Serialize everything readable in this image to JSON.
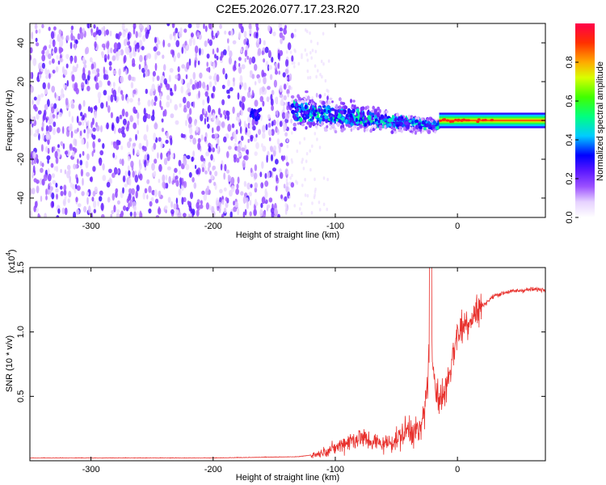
{
  "chart_data": [
    {
      "type": "heatmap",
      "title": "C2E5.2026.077.17.23.R20",
      "xlabel": "Height of straight line (km)",
      "ylabel": "Frequency (Hz)",
      "xlim": [
        -350,
        72
      ],
      "ylim": [
        -50,
        50
      ],
      "xticks": [
        -300,
        -200,
        -100,
        0
      ],
      "yticks": [
        -40,
        -20,
        0,
        20,
        40
      ],
      "colorbar": {
        "label": "Normalized spectral amplitude",
        "range": [
          0.0,
          1.0
        ],
        "ticks": [
          "0.0",
          "0.2",
          "0.4",
          "0.6",
          "0.8"
        ]
      },
      "regions": [
        {
          "name": "noise",
          "x_range": [
            -350,
            -135
          ],
          "freq_spread_hz": 50,
          "amplitude": 0.1
        },
        {
          "name": "transition",
          "x_range": [
            -135,
            -15
          ],
          "freq_center_hz": [
            5,
            -3
          ],
          "amplitude": 0.3
        },
        {
          "name": "carrier",
          "x_range": [
            -15,
            72
          ],
          "freq_center_hz": 0,
          "amplitude": 0.9
        }
      ]
    },
    {
      "type": "line",
      "xlabel": "Height of straight line (km)",
      "ylabel": "SNR (10 * v/v)",
      "y_scale_label": "(x10",
      "y_scale_exp": "4",
      "xlim": [
        -350,
        72
      ],
      "ylim": [
        0,
        1.5
      ],
      "xticks": [
        -300,
        -200,
        -100,
        0
      ],
      "yticks": [
        "0.5",
        "1.0",
        "1.5"
      ],
      "color": "#e8322e",
      "series": [
        {
          "name": "SNR",
          "x": [
            -350,
            -200,
            -130,
            -115,
            -100,
            -90,
            -80,
            -70,
            -60,
            -50,
            -40,
            -30,
            -25,
            -22,
            -20,
            -15,
            -10,
            -5,
            0,
            10,
            20,
            30,
            40,
            50,
            60,
            72
          ],
          "y": [
            0.02,
            0.02,
            0.03,
            0.05,
            0.1,
            0.15,
            0.18,
            0.15,
            0.13,
            0.16,
            0.25,
            0.22,
            0.55,
            0.95,
            0.75,
            0.45,
            0.55,
            0.75,
            1.0,
            1.1,
            1.2,
            1.28,
            1.31,
            1.32,
            1.33,
            1.33
          ]
        }
      ]
    }
  ]
}
